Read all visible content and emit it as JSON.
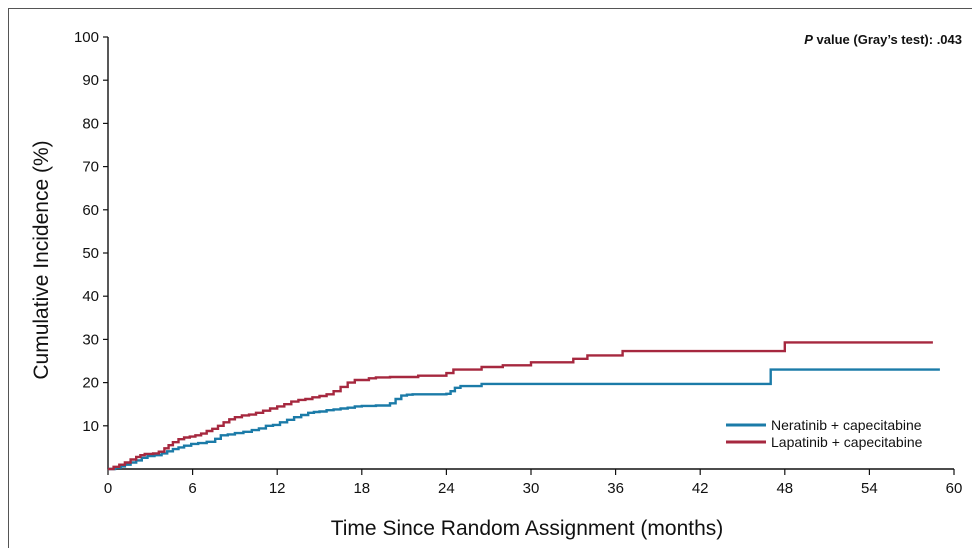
{
  "chart_data": {
    "type": "line",
    "step": true,
    "xlabel": "Time Since Random Assignment (months)",
    "ylabel": "Cumulative Incidence (%)",
    "xlim": [
      0,
      60
    ],
    "ylim": [
      0,
      100
    ],
    "xticks": [
      0,
      6,
      12,
      18,
      24,
      30,
      36,
      42,
      48,
      54,
      60
    ],
    "yticks": [
      10,
      20,
      30,
      40,
      50,
      60,
      70,
      80,
      90,
      100
    ],
    "grid": false,
    "legend_position": "bottom-right",
    "annotation": {
      "p_italic": "P",
      "text": " value (Gray’s test): .043"
    },
    "colors": {
      "neratinib": "#1b7ba8",
      "lapatinib": "#a6283f"
    },
    "series": [
      {
        "name": "Neratinib + capecitabine",
        "color": "#1b7ba8",
        "x": [
          0,
          0.5,
          0.9,
          1.2,
          1.6,
          2.0,
          2.4,
          2.8,
          3.3,
          3.8,
          4.2,
          4.6,
          5.0,
          5.4,
          5.9,
          6.4,
          7.0,
          7.6,
          8.0,
          8.5,
          9.0,
          9.6,
          10.2,
          10.7,
          11.2,
          11.7,
          12.2,
          12.7,
          13.2,
          13.7,
          14.2,
          14.6,
          15.0,
          15.5,
          16.0,
          16.5,
          17.0,
          17.5,
          18.0,
          19.0,
          20.0,
          20.4,
          20.8,
          21.2,
          21.6,
          24.0,
          24.3,
          24.6,
          25.0,
          26.5,
          47.0,
          59.0
        ],
        "y": [
          0,
          0.3,
          0.6,
          1.0,
          1.5,
          2.0,
          2.6,
          3.0,
          3.2,
          3.6,
          4.1,
          4.6,
          5.0,
          5.4,
          5.8,
          6.0,
          6.3,
          7.0,
          7.8,
          8.0,
          8.3,
          8.6,
          9.0,
          9.4,
          10.0,
          10.2,
          10.8,
          11.4,
          12.0,
          12.5,
          13.0,
          13.2,
          13.3,
          13.6,
          13.8,
          14.0,
          14.2,
          14.5,
          14.6,
          14.7,
          15.2,
          16.2,
          17.0,
          17.2,
          17.3,
          17.4,
          18.0,
          18.8,
          19.2,
          19.7,
          23.0,
          23.0
        ]
      },
      {
        "name": "Lapatinib + capecitabine",
        "color": "#a6283f",
        "x": [
          0,
          0.4,
          0.8,
          1.2,
          1.6,
          2.0,
          2.3,
          2.6,
          3.2,
          3.6,
          4.0,
          4.3,
          4.6,
          5.0,
          5.4,
          5.8,
          6.2,
          6.6,
          7.0,
          7.4,
          7.8,
          8.2,
          8.6,
          9.0,
          9.5,
          10.0,
          10.5,
          11.0,
          11.5,
          12.0,
          12.5,
          13.0,
          13.5,
          14.0,
          14.5,
          15.0,
          15.5,
          16.0,
          16.5,
          17.0,
          17.5,
          18.5,
          19.0,
          20.0,
          22.0,
          24.0,
          24.5,
          26.5,
          28.0,
          30.0,
          33.0,
          34.0,
          36.5,
          48.0,
          58.5
        ],
        "y": [
          0,
          0.5,
          1.0,
          1.5,
          2.2,
          2.8,
          3.2,
          3.5,
          3.6,
          4.0,
          4.8,
          5.5,
          6.2,
          6.9,
          7.3,
          7.5,
          7.8,
          8.2,
          8.8,
          9.3,
          10.0,
          10.8,
          11.5,
          12.0,
          12.4,
          12.6,
          13.0,
          13.5,
          14.0,
          14.5,
          15.0,
          15.6,
          16.0,
          16.2,
          16.6,
          16.9,
          17.3,
          18.0,
          19.0,
          20.0,
          20.6,
          21.0,
          21.2,
          21.3,
          21.6,
          22.2,
          23.0,
          23.6,
          24.0,
          24.7,
          25.5,
          26.3,
          27.3,
          29.3,
          29.3
        ]
      }
    ]
  }
}
